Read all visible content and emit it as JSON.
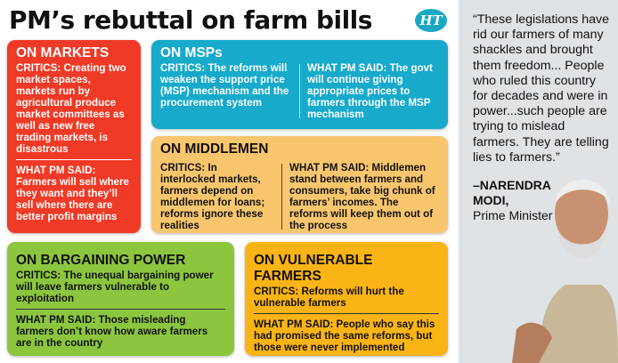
{
  "title": "PM’s rebuttal on farm bills",
  "logo": "HT",
  "markets": {
    "heading": "ON MARKETS",
    "critics_label": "CRITICS:",
    "critics": " Creating two market spaces, markets run by agricultural produce market committees as well as new free trading markets, is disastrous",
    "pm_label": "WHAT PM SAID:",
    "pm": " Farmers will sell where they want and they’ll sell where there are better profit margins"
  },
  "msp": {
    "heading": "ON MSPs",
    "critics_label": "CRITICS:",
    "critics": " The reforms will weaken the support price (MSP) mechanism and the procurement system",
    "pm_label": "WHAT PM SAID:",
    "pm": " The govt will continue giving appropriate prices to farmers through the MSP mechanism"
  },
  "middlemen": {
    "heading": "ON MIDDLEMEN",
    "critics_label": "CRITICS:",
    "critics": " In interlocked markets, farmers depend on middlemen for loans; reforms ignore these realities",
    "pm_label": "WHAT PM SAID:",
    "pm": " Middlemen stand between farmers and consumers, take big chunk of farmers’ incomes. The reforms will keep them out of the process"
  },
  "bargaining": {
    "heading": "ON BARGAINING POWER",
    "critics_label": "CRITICS:",
    "critics": " The unequal bargaining power will leave farmers vulnerable to exploitation",
    "pm_label": "WHAT PM SAID:",
    "pm": "  Those misleading farmers don’t know how aware farmers are in the country"
  },
  "vulnerable": {
    "heading": "ON VULNERABLE FARMERS",
    "critics_label": "CRITICS:",
    "critics": " Reforms will hurt the vulnerable farmers",
    "pm_label": "WHAT PM SAID:",
    "pm": " People who say this had promised the same reforms, but those were never implemented"
  },
  "quote": {
    "text": "“These legislations have rid our farmers of many shackles and brought them freedom... People who ruled this country for decades and were in power...such people are trying to mislead farmers. They are telling lies to farmers.”",
    "name": "–NARENDRA MODI,",
    "role": "Prime Minister"
  },
  "colors": {
    "markets": "#ee3a26",
    "msp": "#17aacb",
    "middlemen": "#f9c66e",
    "bargaining": "#8cc63f",
    "vulnerable": "#fbb416"
  }
}
